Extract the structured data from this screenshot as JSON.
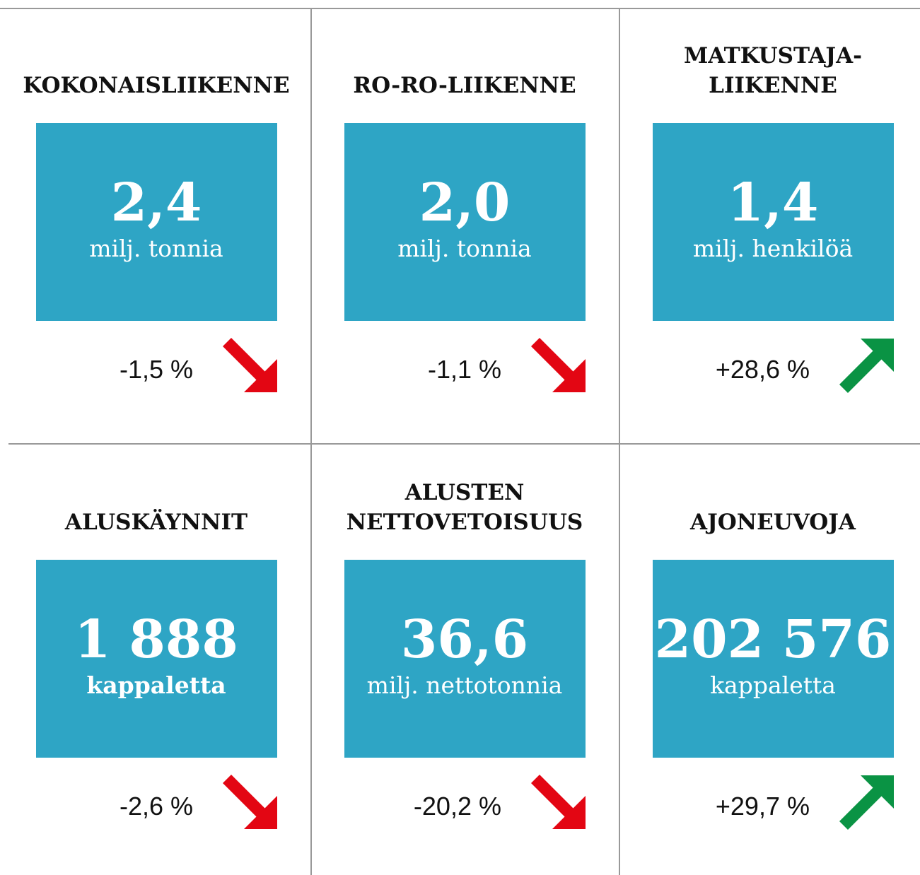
{
  "cards": [
    {
      "title": [
        "KOKONAISLIIKENNE"
      ],
      "value": "2,4",
      "unit": "milj. tonnia",
      "unit_bold": false,
      "change": "-1,5 %",
      "arrow": "down",
      "arrow_color": "#e30613"
    },
    {
      "title": [
        "RO-RO-LIIKENNE"
      ],
      "value": "2,0",
      "unit": "milj. tonnia",
      "unit_bold": false,
      "change": "-1,1 %",
      "arrow": "down",
      "arrow_color": "#e30613"
    },
    {
      "title": [
        "MATKUSTAJA-",
        "LIIKENNE"
      ],
      "value": "1,4",
      "unit": "milj. henkilöä",
      "unit_bold": false,
      "change": "+28,6 %",
      "arrow": "up",
      "arrow_color": "#0a9344"
    },
    {
      "title": [
        "ALUSKÄYNNIT"
      ],
      "value": "1 888",
      "unit": "kappaletta",
      "unit_bold": true,
      "change": "-2,6 %",
      "arrow": "down",
      "arrow_color": "#e30613"
    },
    {
      "title": [
        "ALUSTEN",
        "NETTOVETOISUUS"
      ],
      "value": "36,6",
      "unit": "milj. nettotonnia",
      "unit_bold": false,
      "change": "-20,2 %",
      "arrow": "down",
      "arrow_color": "#e30613"
    },
    {
      "title": [
        "AJONEUVOJA"
      ],
      "value": "202 576",
      "unit": "kappaletta",
      "unit_bold": false,
      "change": "+29,7 %",
      "arrow": "up",
      "arrow_color": "#0a9344"
    }
  ],
  "box_color": "#2ea5c5"
}
